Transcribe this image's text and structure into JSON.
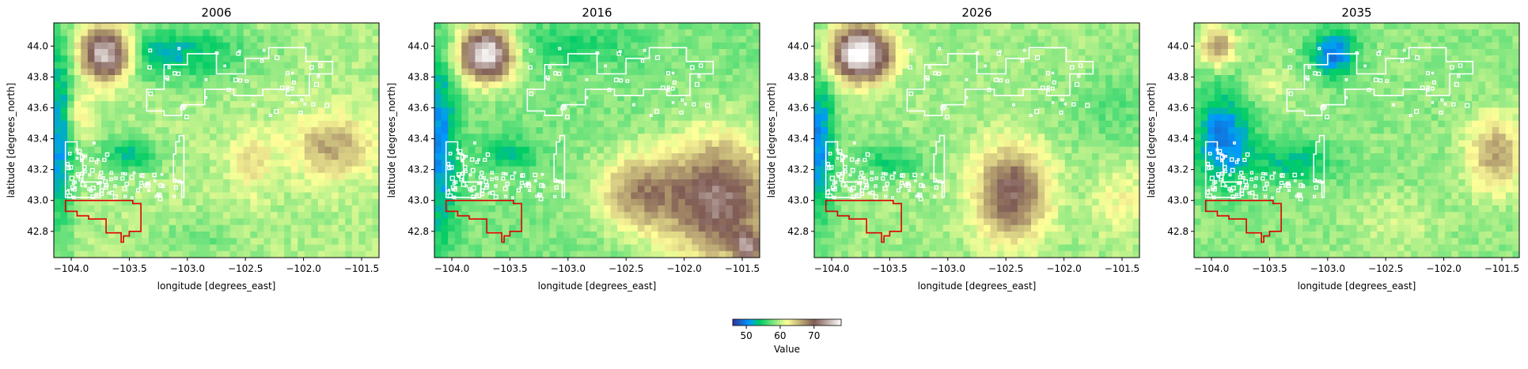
{
  "figure": {
    "xlabel": "longitude [degrees_east]",
    "ylabel": "latitude [degrees_north]",
    "xlim": [
      -104.15,
      -101.35
    ],
    "ylim": [
      42.63,
      44.15
    ],
    "x_ticks": [
      -104.0,
      -103.5,
      -103.0,
      -102.5,
      -102.0,
      -101.5
    ],
    "x_tick_labels": [
      "−104.0",
      "−103.5",
      "−103.0",
      "−102.5",
      "−102.0",
      "−101.5"
    ],
    "y_ticks": [
      42.8,
      43.0,
      43.2,
      43.4,
      43.6,
      43.8,
      44.0
    ],
    "y_tick_labels": [
      "42.8",
      "43.0",
      "43.2",
      "43.4",
      "43.6",
      "43.8",
      "44.0"
    ],
    "colormap": "terrain",
    "white_outline_color": "#ffffff",
    "red_outline_color": "#e00000"
  },
  "panels": [
    {
      "title": "2006"
    },
    {
      "title": "2016"
    },
    {
      "title": "2026"
    },
    {
      "title": "2035"
    }
  ],
  "colorbar": {
    "label": "Value",
    "range": [
      46,
      78
    ],
    "ticks": [
      50,
      60,
      70
    ],
    "tick_labels": [
      "50",
      "60",
      "70"
    ]
  }
}
